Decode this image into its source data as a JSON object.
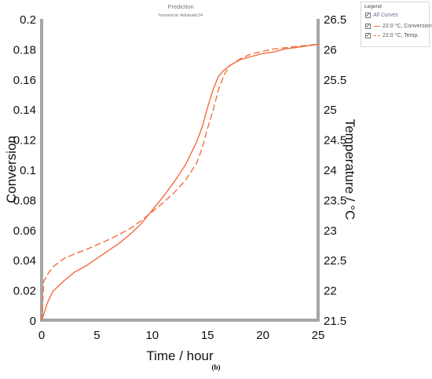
{
  "caption": "(b)",
  "legend": {
    "title": "Legend",
    "all_label": "All Curves",
    "items": [
      {
        "label": "22.0 °C, Conversion",
        "style": "solid"
      },
      {
        "label": "22.0 °C, Temp.",
        "style": "dashed"
      }
    ]
  },
  "chart_data": {
    "type": "line",
    "title": "Prediction",
    "subtitle": "Numerical: Adiabatic24",
    "xlabel": "Time / hour",
    "ylabel": "Conversion",
    "y2label": "Temperature / °C",
    "xlim": [
      0,
      25
    ],
    "ylim": [
      0,
      0.2
    ],
    "y2lim": [
      21.5,
      26.5
    ],
    "xticks": [
      "0",
      "5",
      "10",
      "15",
      "20",
      "25"
    ],
    "yticks": [
      "0",
      "0.02",
      "0.04",
      "0.06",
      "0.08",
      "0.1",
      "0.12",
      "0.14",
      "0.16",
      "0.18",
      "0.2"
    ],
    "y2ticks": [
      "21.5",
      "22",
      "22.5",
      "23",
      "23.5",
      "24",
      "24.5",
      "25",
      "25.5",
      "26",
      "26.5"
    ],
    "grid": false,
    "line_color": "#f26d3d",
    "series": [
      {
        "name": "22.0 °C, Conversion",
        "axis": "left",
        "style": "solid",
        "x": [
          0,
          0.2,
          0.5,
          1,
          2,
          3,
          4,
          5,
          6,
          7,
          8,
          9,
          10,
          11,
          12,
          13,
          14,
          14.5,
          15,
          15.5,
          16,
          16.5,
          17,
          18,
          19,
          20,
          21,
          22,
          23,
          24,
          25
        ],
        "y": [
          0,
          0.004,
          0.011,
          0.019,
          0.026,
          0.032,
          0.036,
          0.041,
          0.046,
          0.051,
          0.057,
          0.064,
          0.073,
          0.082,
          0.092,
          0.103,
          0.118,
          0.128,
          0.141,
          0.153,
          0.162,
          0.166,
          0.169,
          0.173,
          0.175,
          0.177,
          0.178,
          0.18,
          0.181,
          0.182,
          0.183
        ]
      },
      {
        "name": "22.0 °C, Temp.",
        "axis": "right",
        "style": "dashed",
        "x": [
          0,
          0.2,
          0.5,
          1,
          2,
          3,
          4,
          5,
          6,
          7,
          8,
          9,
          10,
          11,
          12,
          13,
          14,
          14.5,
          15,
          15.5,
          16,
          16.5,
          17,
          18,
          19,
          20,
          21,
          22,
          23,
          24,
          25
        ],
        "y": [
          21.5,
          22.15,
          22.25,
          22.38,
          22.52,
          22.6,
          22.67,
          22.75,
          22.83,
          22.92,
          23.02,
          23.15,
          23.3,
          23.45,
          23.62,
          23.82,
          24.1,
          24.35,
          24.68,
          24.98,
          25.33,
          25.57,
          25.72,
          25.84,
          25.92,
          25.96,
          26.0,
          26.02,
          26.04,
          26.06,
          26.08
        ]
      }
    ]
  }
}
